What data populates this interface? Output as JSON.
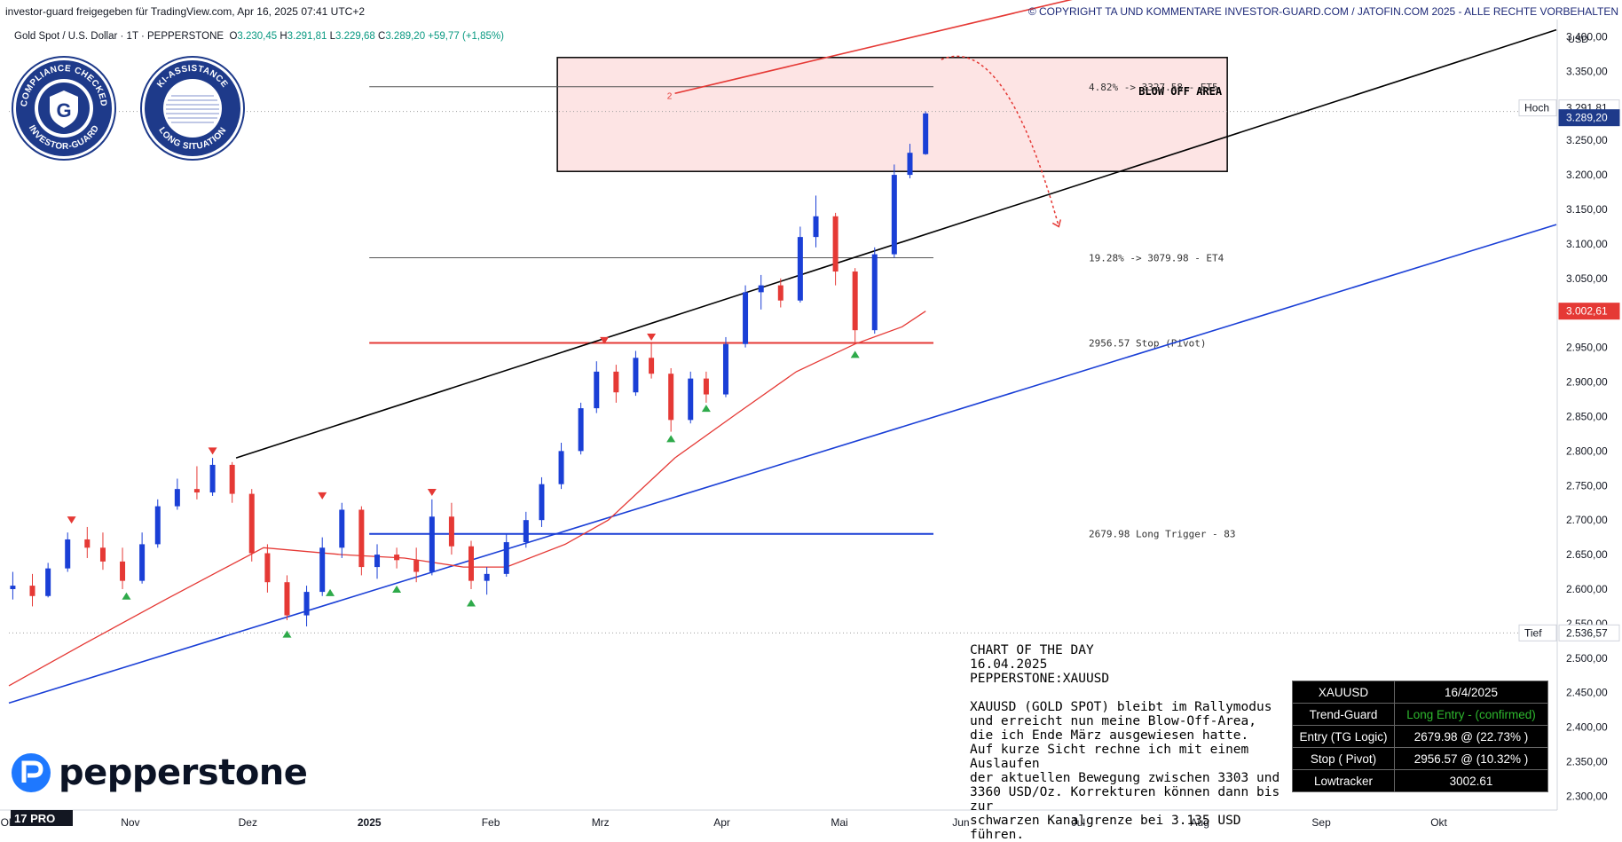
{
  "header": {
    "left": "investor-guard freigegeben für TradingView.com, Apr 16, 2025 07:41 UTC+2",
    "right": "© COPYRIGHT TA UND KOMMENTARE INVESTOR-GUARD.COM / JATOFIN.COM 2025 - ALLE RECHTE VORBEHALTEN"
  },
  "ohlc": {
    "symbol": "Gold Spot / U.S. Dollar · 1T · PEPPERSTONE",
    "o_label": "O",
    "o": "3.230,45",
    "h_label": "H",
    "h": "3.291,81",
    "l_label": "L",
    "l": "3.229,68",
    "c_label": "C",
    "c": "3.289,20",
    "change": "+59,77 (+1,85%)"
  },
  "badges": {
    "compliance_top": "COMPLIANCE CHECKED",
    "compliance_bottom": "INVESTOR-GUARD",
    "compliance_letter": "G",
    "ki_top": "KI-ASSISTANCE",
    "ki_bottom": "LONG SITUATION"
  },
  "logo": {
    "word": "pepperstone",
    "tv": "17 PRO"
  },
  "commentary": {
    "title": "CHART OF THE DAY",
    "date": "16.04.2025",
    "symbol": "PEPPERSTONE:XAUUSD",
    "lines": [
      "XAUUSD (GOLD SPOT) bleibt im Rallymodus",
      "und erreicht nun meine Blow-Off-Area,",
      "die ich Ende März ausgewiesen hatte.",
      "Auf kurze Sicht rechne ich mit einem Auslaufen",
      "der aktuellen Bewegung zwischen 3303 und",
      "3360 USD/Oz. Korrekturen können dann bis zur",
      "schwarzen Kanalgrenze bei 3.135 USD führen."
    ]
  },
  "table": {
    "rows": [
      {
        "k": "XAUUSD",
        "v": "16/4/2025",
        "green": false
      },
      {
        "k": "Trend-Guard",
        "v": "Long Entry - (confirmed)",
        "green": true
      },
      {
        "k": "Entry (TG Logic)",
        "v": "2679.98 @ (22.73% )",
        "green": false
      },
      {
        "k": "Stop ( Pivot)",
        "v": "2956.57 @ (10.32% )",
        "green": false
      },
      {
        "k": "Lowtracker",
        "v": "3002.61",
        "green": false
      }
    ]
  },
  "chart_data": {
    "type": "candlestick",
    "currency": "USD",
    "ylim": [
      2280,
      3425
    ],
    "yticks": [
      {
        "v": 2300,
        "label": "2.300,00"
      },
      {
        "v": 2350,
        "label": "2.350,00"
      },
      {
        "v": 2400,
        "label": "2.400,00"
      },
      {
        "v": 2450,
        "label": "2.450,00"
      },
      {
        "v": 2500,
        "label": "2.500,00"
      },
      {
        "v": 2550,
        "label": "2.550,00"
      },
      {
        "v": 2600,
        "label": "2.600,00"
      },
      {
        "v": 2650,
        "label": "2.650,00"
      },
      {
        "v": 2700,
        "label": "2.700,00"
      },
      {
        "v": 2750,
        "label": "2.750,00"
      },
      {
        "v": 2800,
        "label": "2.800,00"
      },
      {
        "v": 2850,
        "label": "2.850,00"
      },
      {
        "v": 2900,
        "label": "2.900,00"
      },
      {
        "v": 2950,
        "label": "2.950,00"
      },
      {
        "v": 3000,
        "label": "3.000,00"
      },
      {
        "v": 3050,
        "label": "3.050,00"
      },
      {
        "v": 3100,
        "label": "3.100,00"
      },
      {
        "v": 3150,
        "label": "3.150,00"
      },
      {
        "v": 3200,
        "label": "3.200,00"
      },
      {
        "v": 3250,
        "label": "3.250,00"
      },
      {
        "v": 3300,
        "label": "3.300,00"
      },
      {
        "v": 3350,
        "label": "3.350,00"
      },
      {
        "v": 3400,
        "label": "3.400,00"
      }
    ],
    "xticks": [
      {
        "date": "2024-10-01",
        "label": "Okt"
      },
      {
        "date": "2024-11-01",
        "label": "Nov"
      },
      {
        "date": "2024-12-01",
        "label": "Dez"
      },
      {
        "date": "2025-01-01",
        "label": "2025"
      },
      {
        "date": "2025-02-01",
        "label": "Feb"
      },
      {
        "date": "2025-03-01",
        "label": "Mrz"
      },
      {
        "date": "2025-04-01",
        "label": "Apr"
      },
      {
        "date": "2025-05-01",
        "label": "Mai"
      },
      {
        "date": "2025-06-01",
        "label": "Jun"
      },
      {
        "date": "2025-07-01",
        "label": "Jul"
      },
      {
        "date": "2025-08-01",
        "label": "Aug"
      },
      {
        "date": "2025-09-01",
        "label": "Sep"
      },
      {
        "date": "2025-10-01",
        "label": "Okt"
      }
    ],
    "xlim": [
      "2024-10-01",
      "2025-10-31"
    ],
    "price_labels": [
      {
        "v": 3291.81,
        "label": "3.291,81",
        "tag": "Hoch",
        "style": "high"
      },
      {
        "v": 3289.2,
        "label": "3.289,20",
        "style": "last"
      },
      {
        "v": 3002.61,
        "label": "3.002,61",
        "style": "lowtracker"
      },
      {
        "v": 2536.57,
        "label": "2.536,57",
        "tag": "Tief",
        "style": "low"
      }
    ],
    "candles": [
      {
        "date": "2024-10-02",
        "o": 2600,
        "h": 2625,
        "l": 2585,
        "c": 2605
      },
      {
        "date": "2024-10-07",
        "o": 2605,
        "h": 2622,
        "l": 2575,
        "c": 2590
      },
      {
        "date": "2024-10-11",
        "o": 2590,
        "h": 2638,
        "l": 2588,
        "c": 2630
      },
      {
        "date": "2024-10-16",
        "o": 2630,
        "h": 2682,
        "l": 2625,
        "c": 2672
      },
      {
        "date": "2024-10-21",
        "o": 2672,
        "h": 2690,
        "l": 2645,
        "c": 2660
      },
      {
        "date": "2024-10-25",
        "o": 2660,
        "h": 2682,
        "l": 2628,
        "c": 2640
      },
      {
        "date": "2024-10-30",
        "o": 2640,
        "h": 2660,
        "l": 2600,
        "c": 2612
      },
      {
        "date": "2024-11-04",
        "o": 2612,
        "h": 2682,
        "l": 2608,
        "c": 2665
      },
      {
        "date": "2024-11-08",
        "o": 2665,
        "h": 2730,
        "l": 2660,
        "c": 2720
      },
      {
        "date": "2024-11-13",
        "o": 2720,
        "h": 2760,
        "l": 2715,
        "c": 2745
      },
      {
        "date": "2024-11-18",
        "o": 2745,
        "h": 2778,
        "l": 2730,
        "c": 2740
      },
      {
        "date": "2024-11-22",
        "o": 2740,
        "h": 2790,
        "l": 2735,
        "c": 2780
      },
      {
        "date": "2024-11-27",
        "o": 2780,
        "h": 2784,
        "l": 2725,
        "c": 2738
      },
      {
        "date": "2024-12-02",
        "o": 2738,
        "h": 2745,
        "l": 2640,
        "c": 2652
      },
      {
        "date": "2024-12-06",
        "o": 2652,
        "h": 2665,
        "l": 2595,
        "c": 2610
      },
      {
        "date": "2024-12-11",
        "o": 2610,
        "h": 2620,
        "l": 2555,
        "c": 2562
      },
      {
        "date": "2024-12-16",
        "o": 2562,
        "h": 2605,
        "l": 2546,
        "c": 2596
      },
      {
        "date": "2024-12-20",
        "o": 2596,
        "h": 2675,
        "l": 2590,
        "c": 2660
      },
      {
        "date": "2024-12-25",
        "o": 2660,
        "h": 2725,
        "l": 2645,
        "c": 2715
      },
      {
        "date": "2024-12-30",
        "o": 2715,
        "h": 2720,
        "l": 2620,
        "c": 2632
      },
      {
        "date": "2025-01-03",
        "o": 2632,
        "h": 2665,
        "l": 2615,
        "c": 2650
      },
      {
        "date": "2025-01-08",
        "o": 2650,
        "h": 2660,
        "l": 2630,
        "c": 2642
      },
      {
        "date": "2025-01-13",
        "o": 2642,
        "h": 2660,
        "l": 2610,
        "c": 2625
      },
      {
        "date": "2025-01-17",
        "o": 2625,
        "h": 2730,
        "l": 2620,
        "c": 2705
      },
      {
        "date": "2025-01-22",
        "o": 2705,
        "h": 2725,
        "l": 2650,
        "c": 2662
      },
      {
        "date": "2025-01-27",
        "o": 2662,
        "h": 2670,
        "l": 2600,
        "c": 2612
      },
      {
        "date": "2025-01-31",
        "o": 2612,
        "h": 2632,
        "l": 2592,
        "c": 2622
      },
      {
        "date": "2025-02-05",
        "o": 2622,
        "h": 2680,
        "l": 2618,
        "c": 2668
      },
      {
        "date": "2025-02-10",
        "o": 2668,
        "h": 2712,
        "l": 2660,
        "c": 2700
      },
      {
        "date": "2025-02-14",
        "o": 2700,
        "h": 2762,
        "l": 2690,
        "c": 2752
      },
      {
        "date": "2025-02-19",
        "o": 2752,
        "h": 2812,
        "l": 2745,
        "c": 2800
      },
      {
        "date": "2025-02-24",
        "o": 2800,
        "h": 2870,
        "l": 2795,
        "c": 2862
      },
      {
        "date": "2025-02-28",
        "o": 2862,
        "h": 2930,
        "l": 2855,
        "c": 2915
      },
      {
        "date": "2025-03-05",
        "o": 2915,
        "h": 2925,
        "l": 2870,
        "c": 2885
      },
      {
        "date": "2025-03-10",
        "o": 2885,
        "h": 2945,
        "l": 2880,
        "c": 2935
      },
      {
        "date": "2025-03-14",
        "o": 2935,
        "h": 2958,
        "l": 2905,
        "c": 2912
      },
      {
        "date": "2025-03-19",
        "o": 2912,
        "h": 2920,
        "l": 2828,
        "c": 2845
      },
      {
        "date": "2025-03-24",
        "o": 2845,
        "h": 2915,
        "l": 2840,
        "c": 2905
      },
      {
        "date": "2025-03-28",
        "o": 2905,
        "h": 2915,
        "l": 2870,
        "c": 2882
      },
      {
        "date": "2025-04-02",
        "o": 2882,
        "h": 2965,
        "l": 2878,
        "c": 2955
      },
      {
        "date": "2025-04-07",
        "o": 2955,
        "h": 3040,
        "l": 2950,
        "c": 3030
      },
      {
        "date": "2025-04-11",
        "o": 3030,
        "h": 3055,
        "l": 3005,
        "c": 3040
      },
      {
        "date": "2025-04-16",
        "o": 3040,
        "h": 3050,
        "l": 3008,
        "c": 3018
      },
      {
        "date": "2025-04-21",
        "o": 3018,
        "h": 3125,
        "l": 3015,
        "c": 3110
      },
      {
        "date": "2025-04-25",
        "o": 3110,
        "h": 3170,
        "l": 3095,
        "c": 3140
      },
      {
        "date": "2025-04-30",
        "o": 3140,
        "h": 3145,
        "l": 3040,
        "c": 3060
      },
      {
        "date": "2025-05-05",
        "o": 3060,
        "h": 3065,
        "l": 2958,
        "c": 2975
      },
      {
        "date": "2025-05-10",
        "o": 2975,
        "h": 3095,
        "l": 2970,
        "c": 3085
      },
      {
        "date": "2025-05-15",
        "o": 3085,
        "h": 3215,
        "l": 3080,
        "c": 3200
      },
      {
        "date": "2025-05-19",
        "o": 3200,
        "h": 3245,
        "l": 3195,
        "c": 3232
      },
      {
        "date": "2025-05-23",
        "o": 3230,
        "h": 3292,
        "l": 3229,
        "c": 3289
      }
    ],
    "ma_points": [
      {
        "date": "2024-10-01",
        "v": 2460
      },
      {
        "date": "2024-10-20",
        "v": 2520
      },
      {
        "date": "2024-11-10",
        "v": 2585
      },
      {
        "date": "2024-11-25",
        "v": 2630
      },
      {
        "date": "2024-12-05",
        "v": 2660
      },
      {
        "date": "2024-12-25",
        "v": 2650
      },
      {
        "date": "2025-01-10",
        "v": 2645
      },
      {
        "date": "2025-01-25",
        "v": 2632
      },
      {
        "date": "2025-02-05",
        "v": 2632
      },
      {
        "date": "2025-02-20",
        "v": 2665
      },
      {
        "date": "2025-03-03",
        "v": 2700
      },
      {
        "date": "2025-03-20",
        "v": 2790
      },
      {
        "date": "2025-04-05",
        "v": 2855
      },
      {
        "date": "2025-04-20",
        "v": 2915
      },
      {
        "date": "2025-05-05",
        "v": 2955
      },
      {
        "date": "2025-05-17",
        "v": 2980
      },
      {
        "date": "2025-05-23",
        "v": 3002.61
      }
    ],
    "trendlines": [
      {
        "name": "black-channel-line",
        "color": "#000000",
        "from": {
          "date": "2024-11-28",
          "v": 2790
        },
        "to": {
          "date": "2025-10-31",
          "v": 3410
        }
      },
      {
        "name": "blue-channel-line",
        "color": "#1a3fd6",
        "from": {
          "date": "2024-10-01",
          "v": 2435
        },
        "to": {
          "date": "2025-10-31",
          "v": 3128
        }
      },
      {
        "name": "red-target-line",
        "color": "#e53935",
        "from": {
          "date": "2025-03-20",
          "v": 3318
        },
        "to": {
          "date": "2025-06-30",
          "v": 3455
        }
      }
    ],
    "levels": [
      {
        "v": 3327.58,
        "label": "4.82% -> 3327.58 - ET5",
        "from": "2025-01-01",
        "to": "2025-05-25",
        "color": "#555555",
        "width": 1
      },
      {
        "v": 3079.98,
        "label": "19.28% -> 3079.98 - ET4",
        "from": "2025-01-01",
        "to": "2025-05-25",
        "color": "#555555",
        "width": 1
      },
      {
        "v": 2956.57,
        "label": "2956.57  Stop (Pivot)",
        "from": "2025-01-01",
        "to": "2025-05-25",
        "color": "#e53935",
        "width": 2
      },
      {
        "v": 2679.98,
        "label": "2679.98  Long Trigger - 83",
        "from": "2025-01-01",
        "to": "2025-05-25",
        "color": "#1a3fd6",
        "width": 2
      }
    ],
    "blowoff_box": {
      "label": "BLOW OFF AREA",
      "from": "2025-02-18",
      "to": "2025-08-08",
      "top": 3370,
      "bottom": 3205
    },
    "projection": {
      "from": {
        "date": "2025-05-27",
        "v": 3367
      },
      "peak": {
        "date": "2025-06-10",
        "v": 3355
      },
      "to": {
        "date": "2025-06-26",
        "v": 3125
      }
    },
    "markers": [
      {
        "type": "down",
        "date": "2024-10-17",
        "v": 2700
      },
      {
        "type": "up",
        "date": "2024-10-31",
        "v": 2590
      },
      {
        "type": "down",
        "date": "2024-11-22",
        "v": 2800
      },
      {
        "type": "up",
        "date": "2024-12-11",
        "v": 2535
      },
      {
        "type": "down",
        "date": "2024-12-20",
        "v": 2735
      },
      {
        "type": "up",
        "date": "2024-12-22",
        "v": 2595
      },
      {
        "type": "up",
        "date": "2025-01-08",
        "v": 2600
      },
      {
        "type": "down",
        "date": "2025-01-17",
        "v": 2740
      },
      {
        "type": "up",
        "date": "2025-01-27",
        "v": 2580
      },
      {
        "type": "down",
        "date": "2025-03-02",
        "v": 2960
      },
      {
        "type": "down",
        "date": "2025-03-14",
        "v": 2965
      },
      {
        "type": "up",
        "date": "2025-03-19",
        "v": 2818
      },
      {
        "type": "up",
        "date": "2025-03-28",
        "v": 2862
      },
      {
        "type": "up",
        "date": "2025-05-05",
        "v": 2940
      }
    ],
    "annotation_number": {
      "text": "2",
      "date": "2025-03-18",
      "v": 3315
    }
  }
}
